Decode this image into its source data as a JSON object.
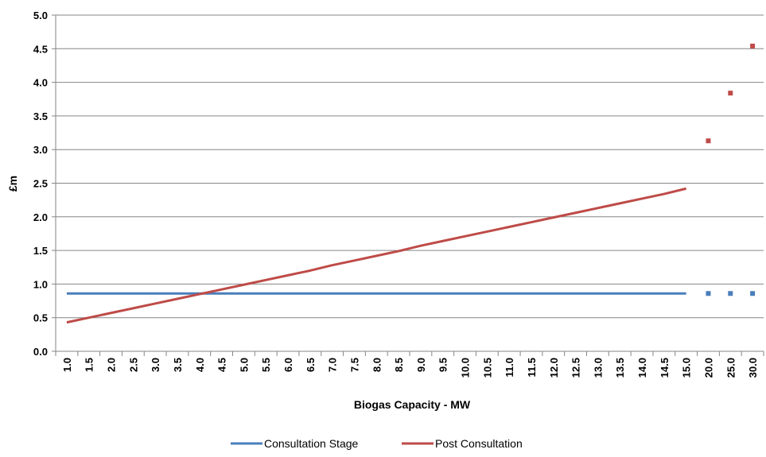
{
  "chart_data": {
    "type": "line",
    "title": "",
    "xlabel": "Biogas Capacity - MW",
    "ylabel": "£m",
    "ylim": [
      0,
      5
    ],
    "yticks": [
      "0.0",
      "0.5",
      "1.0",
      "1.5",
      "2.0",
      "2.5",
      "3.0",
      "3.5",
      "4.0",
      "4.5",
      "5.0"
    ],
    "categories": [
      "1.0",
      "1.5",
      "2.0",
      "2.5",
      "3.0",
      "3.5",
      "4.0",
      "4.5",
      "5.0",
      "5.5",
      "6.0",
      "6.5",
      "7.0",
      "7.5",
      "8.0",
      "8.5",
      "9.0",
      "9.5",
      "10.0",
      "10.5",
      "11.0",
      "11.5",
      "12.0",
      "12.5",
      "13.0",
      "13.5",
      "14.0",
      "14.5",
      "15.0",
      "20.0",
      "25.0",
      "30.0"
    ],
    "grid": true,
    "legend_position": "bottom",
    "series": [
      {
        "name": "Consultation Stage",
        "color": "#4a7ebb",
        "line_values": [
          0.86,
          0.86,
          0.86,
          0.86,
          0.86,
          0.86,
          0.86,
          0.86,
          0.86,
          0.86,
          0.86,
          0.86,
          0.86,
          0.86,
          0.86,
          0.86,
          0.86,
          0.86,
          0.86,
          0.86,
          0.86,
          0.86,
          0.86,
          0.86,
          0.86,
          0.86,
          0.86,
          0.86,
          0.86
        ],
        "marker_values": [
          0.86,
          0.86,
          0.86
        ]
      },
      {
        "name": "Post Consultation",
        "color": "#be4b48",
        "line_values": [
          0.43,
          0.5,
          0.57,
          0.64,
          0.71,
          0.78,
          0.85,
          0.92,
          0.99,
          1.06,
          1.13,
          1.2,
          1.28,
          1.35,
          1.42,
          1.49,
          1.57,
          1.64,
          1.71,
          1.78,
          1.85,
          1.92,
          1.99,
          2.06,
          2.13,
          2.2,
          2.27,
          2.34,
          2.42
        ],
        "marker_values": [
          3.13,
          3.84,
          4.54
        ]
      }
    ]
  }
}
